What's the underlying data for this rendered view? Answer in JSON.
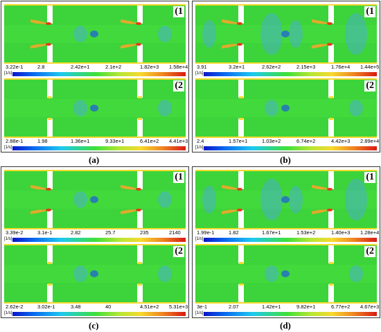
{
  "panels": [
    {
      "caption": "(a)",
      "subplots": [
        {
          "label": "(1",
          "unit": "[1/s]",
          "ticks": [
            "3.22e-1",
            "2.8",
            "2.42e+1",
            "2.1e+2",
            "1.82e+3",
            "1.58e+4"
          ]
        },
        {
          "label": "(2",
          "unit": "[1/s]",
          "ticks": [
            "2.88e-1",
            "1.98",
            "1.36e+1",
            "9.33e+1",
            "6.41e+2",
            "4.41e+3"
          ]
        }
      ]
    },
    {
      "caption": "(b)",
      "subplots": [
        {
          "label": "(1",
          "unit": "[1/s]",
          "ticks": [
            "3.91",
            "3.2e+1",
            "2.62e+2",
            "2.15e+3",
            "1.76e+4",
            "1.44e+5"
          ]
        },
        {
          "label": "(2",
          "unit": "[1/s]",
          "ticks": [
            "2.4",
            "1.57e+1",
            "1.03e+2",
            "6.74e+2",
            "4.42e+3",
            "2.89e+4"
          ]
        }
      ]
    },
    {
      "caption": "(c)",
      "subplots": [
        {
          "label": "(1",
          "unit": "[1/s]",
          "ticks": [
            "3.39e-2",
            "3.1e-1",
            "2.82",
            "25.7",
            "235",
            "2140"
          ]
        },
        {
          "label": "(2",
          "unit": "[1/s]",
          "ticks": [
            "2.62e-2",
            "3.02e-1",
            "3.48",
            "40",
            "4.51e+2",
            "5.31e+3"
          ]
        }
      ]
    },
    {
      "caption": "(d)",
      "subplots": [
        {
          "label": "(1",
          "unit": "[1/s]",
          "ticks": [
            "1.99e-1",
            "1.82",
            "1.67e+1",
            "1.53e+2",
            "1.40e+3",
            "1.28e+4"
          ]
        },
        {
          "label": "(2",
          "unit": "[1/s]",
          "ticks": [
            "3e-1",
            "2.07",
            "1.42e+1",
            "9.82e+1",
            "6.77e+2",
            "4.67e+3"
          ]
        }
      ]
    }
  ],
  "colormap": [
    "#0a16c8",
    "#1ec8f0",
    "#3ee03a",
    "#f6d92e",
    "#d81a14"
  ]
}
